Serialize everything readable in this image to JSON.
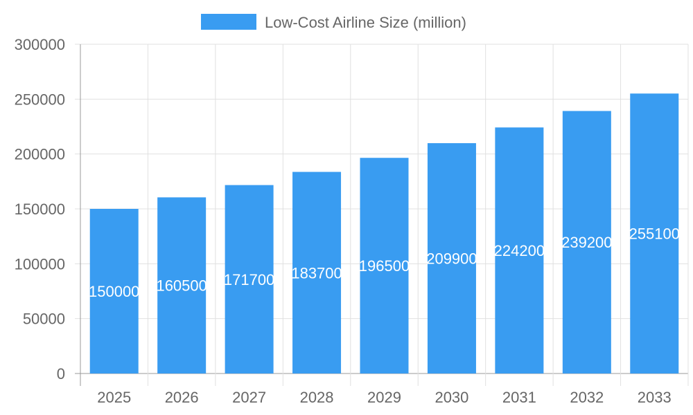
{
  "chart_data": {
    "type": "bar",
    "categories": [
      "2025",
      "2026",
      "2027",
      "2028",
      "2029",
      "2030",
      "2031",
      "2032",
      "2033"
    ],
    "series": [
      {
        "name": "Low-Cost Airline Size (million)",
        "values": [
          150000,
          160500,
          171700,
          183700,
          196500,
          209900,
          224200,
          239200,
          255100
        ]
      }
    ],
    "ylim": [
      0,
      300000
    ],
    "yticks": [
      0,
      50000,
      100000,
      150000,
      200000,
      250000,
      300000
    ],
    "grid": true,
    "legend": "top",
    "data_labels": true,
    "colors": {
      "bar": "#399cf1",
      "grid": "#e0e0e0",
      "axis": "#999999",
      "text": "#666666",
      "label": "#ffffff"
    }
  }
}
